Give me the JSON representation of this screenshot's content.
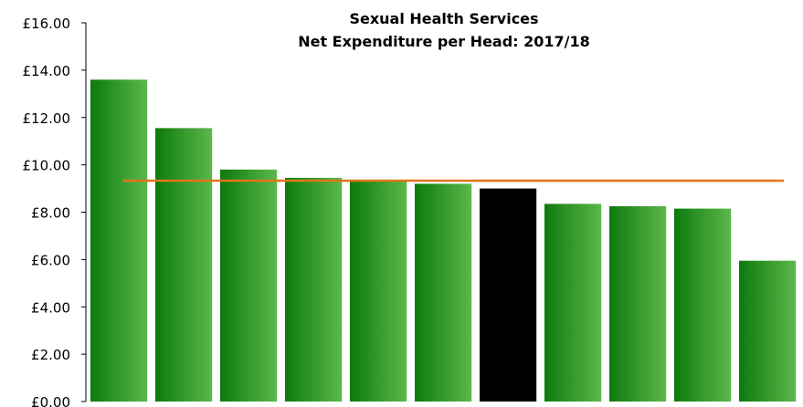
{
  "chart_data": {
    "type": "bar",
    "title": [
      "Sexual Health Services",
      "Net Expenditure per Head: 2017/18"
    ],
    "xlabel": "",
    "ylabel": "",
    "ylim": [
      0,
      16
    ],
    "yticks": [
      0,
      2,
      4,
      6,
      8,
      10,
      12,
      14,
      16
    ],
    "ytick_labels": [
      "£0.00",
      "£2.00",
      "£4.00",
      "£6.00",
      "£8.00",
      "£10.00",
      "£12.00",
      "£14.00",
      "£16.00"
    ],
    "categories": [
      "",
      "",
      "",
      "",
      "",
      "",
      "",
      "",
      "",
      "",
      ""
    ],
    "values": [
      13.6,
      11.55,
      9.8,
      9.45,
      9.3,
      9.2,
      9.0,
      8.35,
      8.25,
      8.15,
      5.95
    ],
    "highlight_index": 6,
    "reference_line": {
      "value": 9.33,
      "color": "#e0761c"
    },
    "colors": {
      "bar_dark": "#0d7a0d",
      "bar_light": "#5cb84a",
      "highlight": "#000000"
    },
    "grid": false,
    "legend": "none"
  }
}
